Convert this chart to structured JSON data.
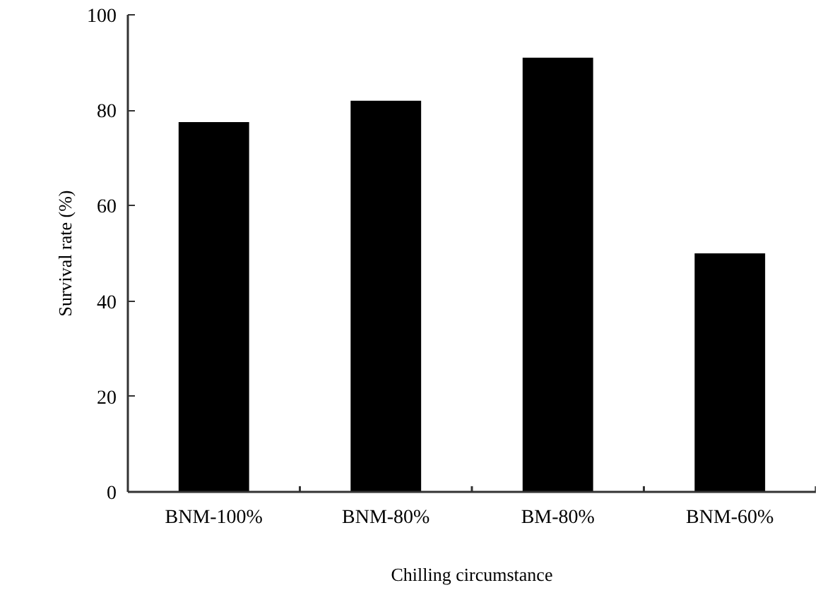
{
  "chart_data": {
    "type": "bar",
    "categories": [
      "BNM-100%",
      "BNM-80%",
      "BM-80%",
      "BNM-60%"
    ],
    "values": [
      77.5,
      82,
      91,
      50
    ],
    "color": "#000000",
    "xlabel": "Chilling circumstance",
    "ylabel": "Survival rate (%)",
    "ylim": [
      0,
      100
    ],
    "yticks": [
      0,
      20,
      40,
      60,
      80,
      100
    ],
    "grid": false
  }
}
